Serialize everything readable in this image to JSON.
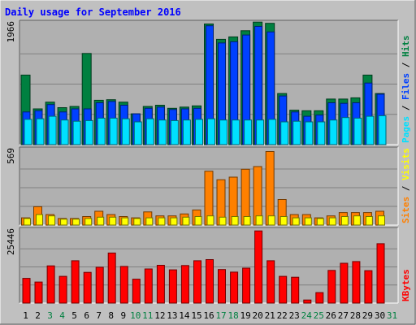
{
  "title": "Daily usage for September 2016",
  "colors": {
    "background": "#c0c0c0",
    "plot_bg": "#b0b0b0",
    "title": "#0000ff",
    "hits": "#008040",
    "files": "#0040ff",
    "pages": "#00e0ff",
    "visits": "#ffff00",
    "sites": "#ff8000",
    "kbytes": "#ff0000",
    "grid": "#808080",
    "weekday_label": "#000000",
    "weekend_label": "#008040"
  },
  "chart_data": [
    {
      "type": "bar",
      "panel": "hits-files-pages",
      "categories": [
        "1",
        "2",
        "3",
        "4",
        "5",
        "6",
        "7",
        "8",
        "9",
        "10",
        "11",
        "12",
        "13",
        "14",
        "15",
        "16",
        "17",
        "18",
        "19",
        "20",
        "21",
        "22",
        "23",
        "24",
        "25",
        "26",
        "27",
        "28",
        "29",
        "30",
        "31"
      ],
      "weekend_days": [
        "3",
        "4",
        "10",
        "11",
        "17",
        "18",
        "24",
        "25",
        "31"
      ],
      "y_max_label": "1966",
      "ylim": [
        0,
        1966
      ],
      "series_labels": [
        "Pages",
        "Files",
        "Hits"
      ],
      "series": [
        {
          "name": "Hits",
          "values": [
            1130,
            580,
            690,
            600,
            620,
            1480,
            720,
            730,
            690,
            500,
            620,
            640,
            590,
            610,
            630,
            1960,
            1710,
            1750,
            1850,
            1990,
            1970,
            830,
            560,
            550,
            550,
            740,
            740,
            760,
            1130,
            830,
            0
          ]
        },
        {
          "name": "Files",
          "values": [
            530,
            550,
            650,
            530,
            580,
            580,
            680,
            700,
            640,
            500,
            590,
            610,
            570,
            580,
            590,
            1930,
            1650,
            1670,
            1780,
            1920,
            1830,
            790,
            530,
            460,
            480,
            680,
            670,
            680,
            1000,
            820,
            0
          ]
        },
        {
          "name": "Pages",
          "values": [
            410,
            420,
            460,
            400,
            380,
            390,
            430,
            430,
            420,
            370,
            420,
            400,
            390,
            400,
            410,
            420,
            400,
            400,
            400,
            400,
            410,
            370,
            380,
            370,
            370,
            400,
            440,
            430,
            460,
            470,
            0
          ]
        }
      ]
    },
    {
      "type": "bar",
      "panel": "visits-sites",
      "categories": [
        "1",
        "2",
        "3",
        "4",
        "5",
        "6",
        "7",
        "8",
        "9",
        "10",
        "11",
        "12",
        "13",
        "14",
        "15",
        "16",
        "17",
        "18",
        "19",
        "20",
        "21",
        "22",
        "23",
        "24",
        "25",
        "26",
        "27",
        "28",
        "29",
        "30",
        "31"
      ],
      "y_max_label": "569",
      "ylim": [
        0,
        569
      ],
      "series_labels": [
        "Sites",
        "Visits"
      ],
      "series": [
        {
          "name": "Sites",
          "values": [
            55,
            140,
            80,
            50,
            50,
            65,
            105,
            80,
            65,
            55,
            100,
            70,
            70,
            85,
            115,
            410,
            345,
            365,
            425,
            445,
            560,
            195,
            80,
            80,
            55,
            70,
            95,
            95,
            95,
            105,
            0
          ]
        },
        {
          "name": "Visits",
          "values": [
            50,
            80,
            70,
            45,
            45,
            50,
            60,
            60,
            55,
            50,
            55,
            55,
            55,
            60,
            65,
            70,
            60,
            65,
            65,
            70,
            70,
            65,
            55,
            55,
            50,
            55,
            65,
            70,
            65,
            70,
            0
          ]
        }
      ]
    },
    {
      "type": "bar",
      "panel": "kbytes",
      "categories": [
        "1",
        "2",
        "3",
        "4",
        "5",
        "6",
        "7",
        "8",
        "9",
        "10",
        "11",
        "12",
        "13",
        "14",
        "15",
        "16",
        "17",
        "18",
        "19",
        "20",
        "21",
        "22",
        "23",
        "24",
        "25",
        "26",
        "27",
        "28",
        "29",
        "30",
        "31"
      ],
      "y_max_label": "25446",
      "ylim": [
        0,
        25446
      ],
      "series_labels": [
        "KBytes"
      ],
      "series": [
        {
          "name": "KBytes",
          "values": [
            8700,
            7400,
            13100,
            9400,
            14900,
            10800,
            12600,
            17600,
            12900,
            8400,
            12000,
            13300,
            11700,
            13200,
            14900,
            15300,
            11800,
            10900,
            12300,
            25400,
            14900,
            9400,
            9100,
            1100,
            3700,
            11500,
            14000,
            14600,
            11400,
            20900,
            0
          ]
        }
      ]
    }
  ]
}
